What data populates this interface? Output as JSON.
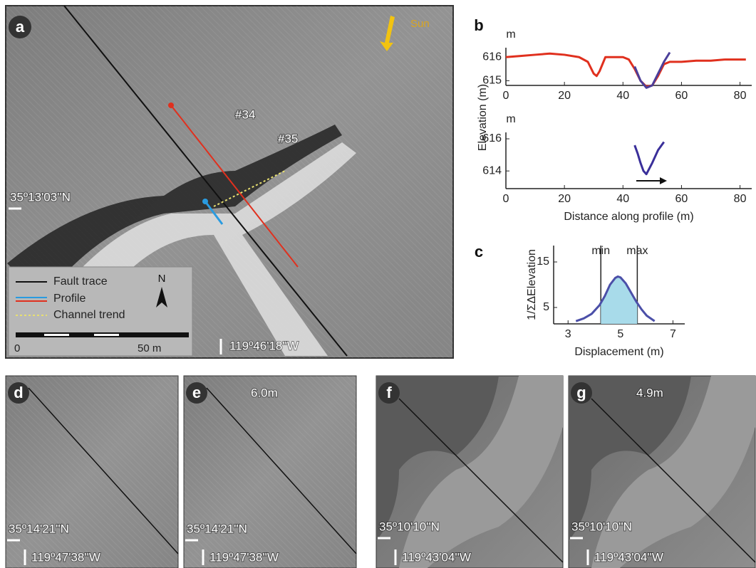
{
  "panels": [
    {
      "letter": "a",
      "sun": "Sun",
      "labels": [
        "#34",
        "#35"
      ],
      "lat": "35º13'03''N",
      "lon": "119º46'18''W",
      "legend": [
        "Fault trace",
        "Profile",
        "Channel trend"
      ],
      "north": "N",
      "scale": [
        "0",
        "50 m"
      ]
    },
    {
      "letter": "d",
      "lat": "35º14'21''N",
      "lon": "119º47'38''W"
    },
    {
      "letter": "e",
      "offset": "6.0m",
      "lat": "35º14'21''N",
      "lon": "119º47'38''W"
    },
    {
      "letter": "f",
      "lat": "35º10'10''N",
      "lon": "119º43'04''W"
    },
    {
      "letter": "g",
      "offset": "4.9m",
      "lat": "35º10'10''N",
      "lon": "119º43'04''W"
    }
  ],
  "chart_data": [
    {
      "type": "line",
      "panel": "b",
      "y_unit": "m",
      "ylabel": "Elevation (m)",
      "x": [
        0,
        5,
        10,
        15,
        20,
        25,
        28,
        30,
        31,
        32,
        34,
        40,
        42,
        44,
        46,
        48,
        50,
        52,
        54,
        56,
        60,
        65,
        70,
        75,
        80,
        82
      ],
      "series": [
        {
          "color": "#e0301e",
          "values": [
            616.0,
            616.05,
            616.1,
            616.15,
            616.1,
            616.0,
            615.8,
            615.3,
            615.2,
            615.4,
            616.0,
            616.0,
            615.9,
            615.5,
            615.0,
            614.75,
            614.8,
            615.2,
            615.7,
            615.8,
            615.8,
            615.85,
            615.85,
            615.9,
            615.9,
            615.9
          ]
        },
        {
          "color": "#4b3f9a",
          "values": [
            null,
            null,
            null,
            null,
            null,
            null,
            null,
            null,
            null,
            null,
            null,
            null,
            null,
            615.6,
            615.0,
            614.7,
            614.8,
            615.3,
            615.8,
            616.2,
            null,
            null,
            null,
            null,
            null,
            null
          ]
        }
      ],
      "xlim": [
        0,
        84
      ],
      "ylim": [
        614.8,
        616.4
      ],
      "xticks": [
        0,
        20,
        40,
        60,
        80
      ],
      "yticks": [
        615,
        616
      ]
    },
    {
      "type": "line",
      "y_unit": "m",
      "xlabel": "Distance along profile (m)",
      "x": [
        44,
        45,
        46,
        47,
        48,
        50,
        52,
        54
      ],
      "series": [
        {
          "color": "#3a2f9a",
          "values": [
            615.6,
            615.1,
            614.5,
            614.0,
            613.8,
            614.5,
            615.3,
            615.8
          ]
        }
      ],
      "xlim": [
        0,
        84
      ],
      "ylim": [
        612.9,
        616.4
      ],
      "xticks": [
        0,
        20,
        40,
        60,
        80
      ],
      "yticks": [
        614,
        616
      ]
    },
    {
      "type": "line",
      "panel": "c",
      "ylabel": "1/ΣΔElevation",
      "xlabel": "Displacement (m)",
      "x": [
        3.3,
        3.6,
        3.9,
        4.2,
        4.4,
        4.6,
        4.8,
        4.9,
        5.0,
        5.2,
        5.4,
        5.6,
        5.8,
        6.0,
        6.3
      ],
      "series": [
        {
          "color": "#4b4fa8",
          "values": [
            2.0,
            2.6,
            3.6,
            5.5,
            7.5,
            10,
            11.5,
            11.8,
            11.6,
            10.3,
            8.3,
            6.3,
            4.6,
            3.2,
            2.0
          ]
        }
      ],
      "markers": [
        {
          "label": "min",
          "value": 4.25
        },
        {
          "label": "max",
          "value": 5.64
        }
      ],
      "fill_color": "#a8dbea",
      "xlim": [
        2.45,
        7.45
      ],
      "ylim": [
        1.4,
        18.6
      ],
      "xticks": [
        3,
        5,
        7
      ],
      "yticks": [
        5,
        15
      ]
    }
  ]
}
